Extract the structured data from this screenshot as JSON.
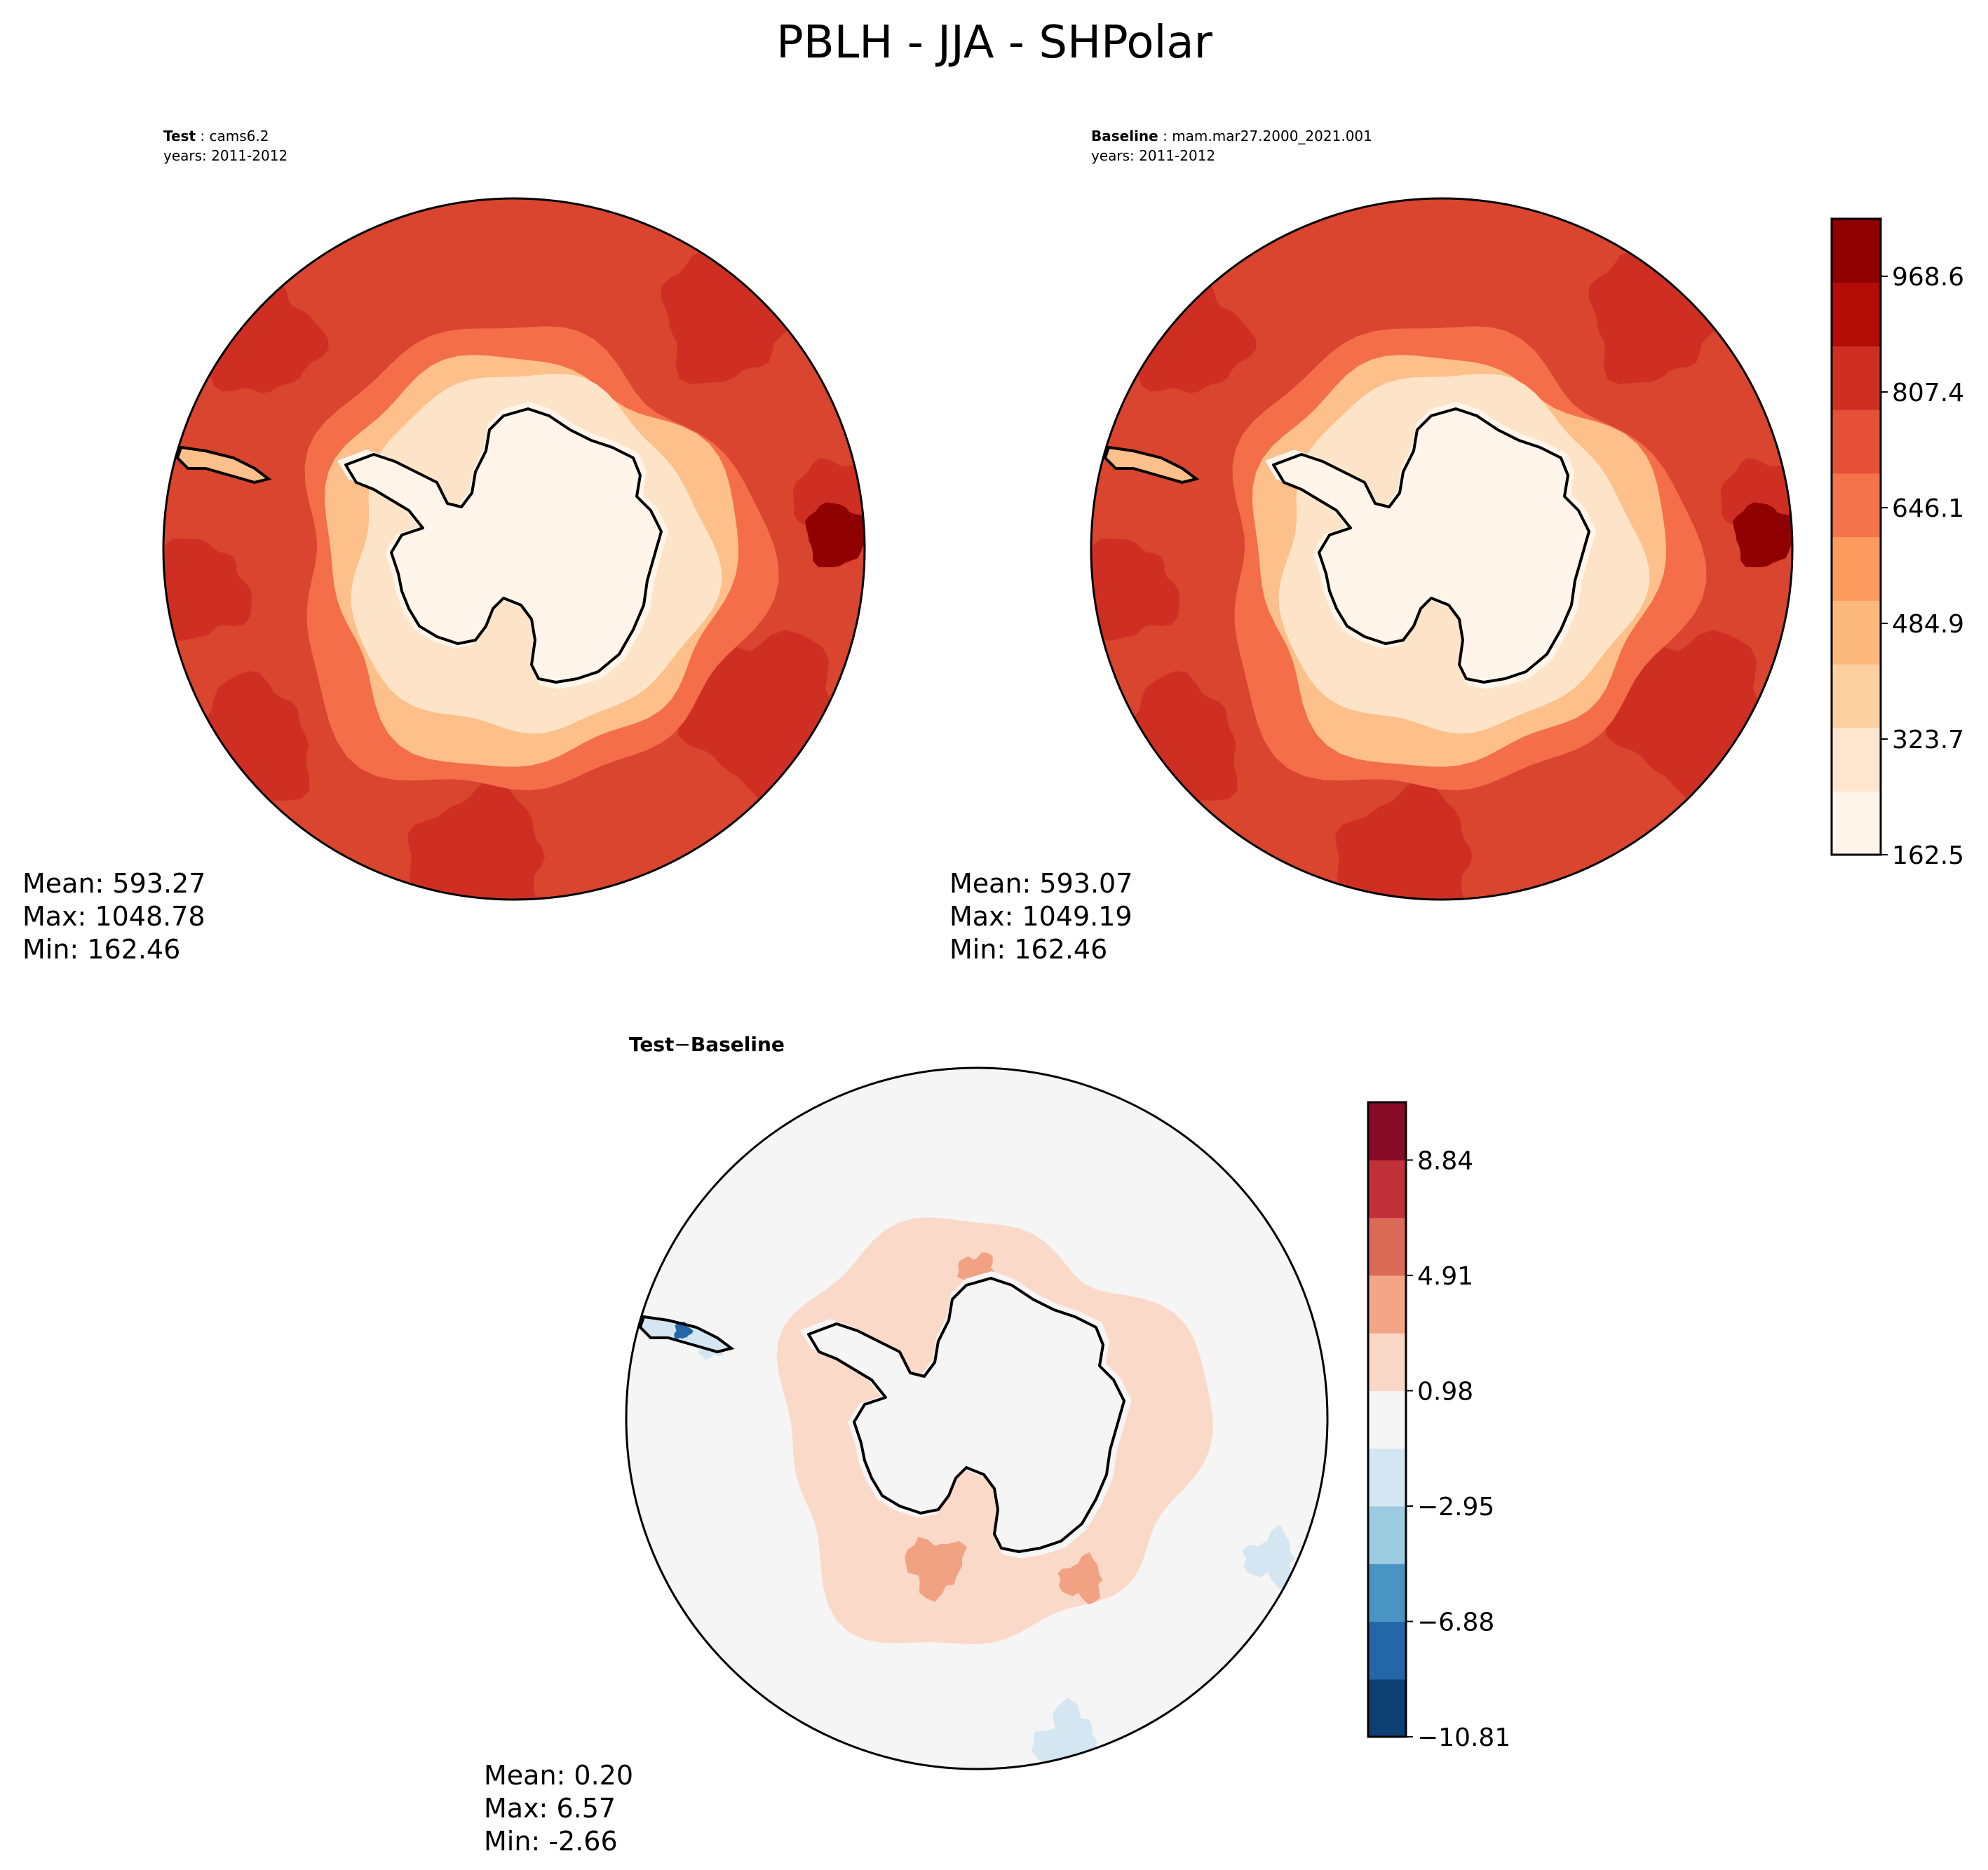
{
  "title": "PBLH - JJA - SHPolar",
  "panels": [
    {
      "id": "test",
      "label_bold": "Test",
      "label_name": "cams6.2",
      "label_years": "years: 2011-2012",
      "stats": {
        "mean": "Mean: 593.27",
        "max": "Max: 1048.78",
        "min": "Min: 162.46"
      }
    },
    {
      "id": "baseline",
      "label_bold": "Baseline",
      "label_name": "mam.mar27.2000_2021.001",
      "label_years": "years: 2011-2012",
      "stats": {
        "mean": "Mean: 593.07",
        "max": "Max: 1049.19",
        "min": "Min: 162.46"
      }
    },
    {
      "id": "diff",
      "label_test": "Test",
      "label_minus": "−",
      "label_baseline": "Baseline",
      "stats": {
        "mean": "Mean:  0.20",
        "max": "Max:  6.57",
        "min": "Min: -2.66"
      }
    }
  ],
  "chart_data": [
    {
      "type": "heatmap",
      "projection": "south-polar-stereographic",
      "panel": "Test",
      "case": "cams6.2",
      "years": "2011-2012",
      "colormap": "OrRd",
      "colorbar": {
        "ticks": [
          162.5,
          323.7,
          484.9,
          646.1,
          807.4,
          968.6
        ],
        "tick_labels": [
          "162.5",
          "323.7",
          "484.9",
          "646.1",
          "807.4",
          "968.6"
        ],
        "range": [
          162.5,
          1048.8
        ],
        "n_levels": 11
      },
      "stats": {
        "mean": 593.27,
        "max": 1048.78,
        "min": 162.46
      }
    },
    {
      "type": "heatmap",
      "projection": "south-polar-stereographic",
      "panel": "Baseline",
      "case": "mam.mar27.2000_2021.001",
      "years": "2011-2012",
      "colormap": "OrRd",
      "stats": {
        "mean": 593.07,
        "max": 1049.19,
        "min": 162.46
      }
    },
    {
      "type": "heatmap",
      "projection": "south-polar-stereographic",
      "panel": "Test − Baseline",
      "colormap": "RdBu_r",
      "colorbar": {
        "ticks": [
          -10.81,
          -6.88,
          -2.95,
          0.98,
          4.91,
          8.84
        ],
        "tick_labels": [
          "−10.81",
          "−6.88",
          "−2.95",
          "0.98",
          "4.91",
          "8.84"
        ],
        "range": [
          -10.81,
          10.81
        ],
        "n_levels": 11
      },
      "stats": {
        "mean": 0.2,
        "max": 6.57,
        "min": -2.66
      }
    }
  ],
  "colors": {
    "abs_levels": [
      "#fff5eb",
      "#fee6ce",
      "#fdd0a2",
      "#fdb97d",
      "#fd9b5e",
      "#f5734a",
      "#e65037",
      "#cf2f23",
      "#b40c07",
      "#8f0000"
    ],
    "diff_levels": [
      "#0d3f73",
      "#2367a8",
      "#4a94c4",
      "#9ccae1",
      "#d3e6f1",
      "#f5f5f5",
      "#fad6c6",
      "#f2a686",
      "#da6a55",
      "#c0313a",
      "#870b25"
    ],
    "ring_outer": "#d9452f",
    "ring_mid": "#cf2f23",
    "ring_band": "#f36e49",
    "ring_peach": "#fdc08a",
    "ring_light": "#fde4c8",
    "land_interior": "#fff5eb",
    "diff_background": "#f5f5f5",
    "diff_band": "#fbd9c9",
    "diff_patch": "#f0a283",
    "diff_blue": "#d3e6f1",
    "diff_deep_blue": "#2367a8"
  }
}
